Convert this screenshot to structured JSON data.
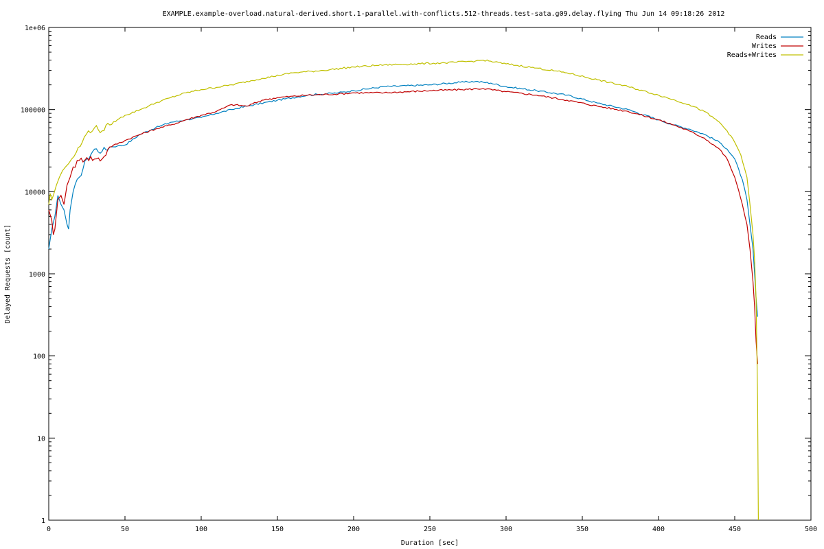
{
  "chart_data": {
    "type": "line",
    "title": "EXAMPLE.example-overload.natural-derived.short.1-parallel.with-conflicts.512-threads.test-sata.g09.delay.flying Thu Jun 14 09:18:26 2012",
    "xlabel": "Duration [sec]",
    "ylabel": "Delayed Requests [count]",
    "xlim": [
      0,
      500
    ],
    "ylim": [
      1,
      1000000
    ],
    "yscale": "log",
    "grid": false,
    "legend_position": "top-right",
    "x_ticks": [
      {
        "value": 0,
        "label": "0"
      },
      {
        "value": 50,
        "label": "50"
      },
      {
        "value": 100,
        "label": "100"
      },
      {
        "value": 150,
        "label": "150"
      },
      {
        "value": 200,
        "label": "200"
      },
      {
        "value": 250,
        "label": "250"
      },
      {
        "value": 300,
        "label": "300"
      },
      {
        "value": 350,
        "label": "350"
      },
      {
        "value": 400,
        "label": "400"
      },
      {
        "value": 450,
        "label": "450"
      },
      {
        "value": 500,
        "label": "500"
      }
    ],
    "y_ticks": [
      {
        "value": 1,
        "label": "1"
      },
      {
        "value": 10,
        "label": "10"
      },
      {
        "value": 100,
        "label": "100"
      },
      {
        "value": 1000,
        "label": "1000"
      },
      {
        "value": 10000,
        "label": "10000"
      },
      {
        "value": 100000,
        "label": "100000"
      },
      {
        "value": 1000000,
        "label": "1e+06"
      }
    ],
    "series": [
      {
        "name": "Reads",
        "color": "#0080c0",
        "x": [
          0,
          2,
          4,
          6,
          8,
          10,
          12,
          13,
          14,
          16,
          20,
          25,
          30,
          35,
          40,
          45,
          50,
          60,
          70,
          80,
          90,
          100,
          110,
          120,
          130,
          150,
          170,
          190,
          200,
          220,
          250,
          270,
          280,
          290,
          300,
          320,
          340,
          360,
          380,
          400,
          410,
          420,
          430,
          440,
          445,
          450,
          455,
          458,
          460,
          462,
          463,
          464,
          465
        ],
        "y": [
          2000,
          3500,
          5000,
          9000,
          7000,
          6000,
          4000,
          3500,
          6000,
          10000,
          15000,
          25000,
          33000,
          31000,
          35000,
          36000,
          37000,
          50000,
          60000,
          70000,
          75000,
          80000,
          90000,
          100000,
          110000,
          130000,
          150000,
          160000,
          170000,
          190000,
          200000,
          215000,
          220000,
          210000,
          190000,
          170000,
          150000,
          120000,
          100000,
          75000,
          65000,
          58000,
          50000,
          40000,
          33000,
          25000,
          14000,
          8000,
          4000,
          2000,
          1000,
          500,
          300
        ]
      },
      {
        "name": "Writes",
        "color": "#c00000",
        "x": [
          0,
          2,
          3,
          4,
          6,
          8,
          10,
          12,
          14,
          16,
          20,
          25,
          30,
          35,
          40,
          50,
          60,
          70,
          80,
          90,
          100,
          110,
          120,
          130,
          140,
          150,
          170,
          190,
          200,
          220,
          250,
          270,
          285,
          300,
          320,
          340,
          360,
          380,
          400,
          410,
          420,
          430,
          440,
          445,
          450,
          455,
          458,
          460,
          462,
          463,
          464,
          465
        ],
        "y": [
          6000,
          4500,
          3000,
          3500,
          8000,
          9000,
          7000,
          12000,
          15000,
          20000,
          24000,
          26000,
          25000,
          25000,
          35000,
          42000,
          50000,
          58000,
          65000,
          75000,
          85000,
          95000,
          115000,
          110000,
          130000,
          140000,
          150000,
          155000,
          160000,
          160000,
          170000,
          175000,
          180000,
          165000,
          150000,
          130000,
          110000,
          95000,
          75000,
          65000,
          55000,
          45000,
          33000,
          25000,
          15000,
          7000,
          4000,
          2000,
          800,
          400,
          150,
          80
        ]
      },
      {
        "name": "Reads+Writes",
        "color": "#c0c000",
        "x": [
          0,
          1,
          2,
          3,
          5,
          7,
          9,
          11,
          13,
          15,
          18,
          22,
          26,
          30,
          35,
          40,
          45,
          50,
          60,
          70,
          80,
          90,
          100,
          120,
          140,
          160,
          180,
          200,
          220,
          240,
          260,
          280,
          285,
          300,
          320,
          340,
          360,
          380,
          400,
          420,
          430,
          440,
          445,
          450,
          454,
          458,
          460,
          462,
          463,
          464,
          465,
          465.5
        ],
        "y": [
          7000,
          9500,
          8000,
          9000,
          12000,
          15000,
          18000,
          20000,
          22000,
          25000,
          30000,
          40000,
          55000,
          60000,
          55000,
          65000,
          75000,
          85000,
          100000,
          120000,
          140000,
          160000,
          175000,
          200000,
          240000,
          280000,
          300000,
          330000,
          350000,
          360000,
          370000,
          390000,
          400000,
          360000,
          320000,
          280000,
          230000,
          190000,
          150000,
          115000,
          95000,
          70000,
          55000,
          40000,
          28000,
          15000,
          7000,
          3000,
          1500,
          500,
          30,
          1
        ]
      }
    ]
  }
}
